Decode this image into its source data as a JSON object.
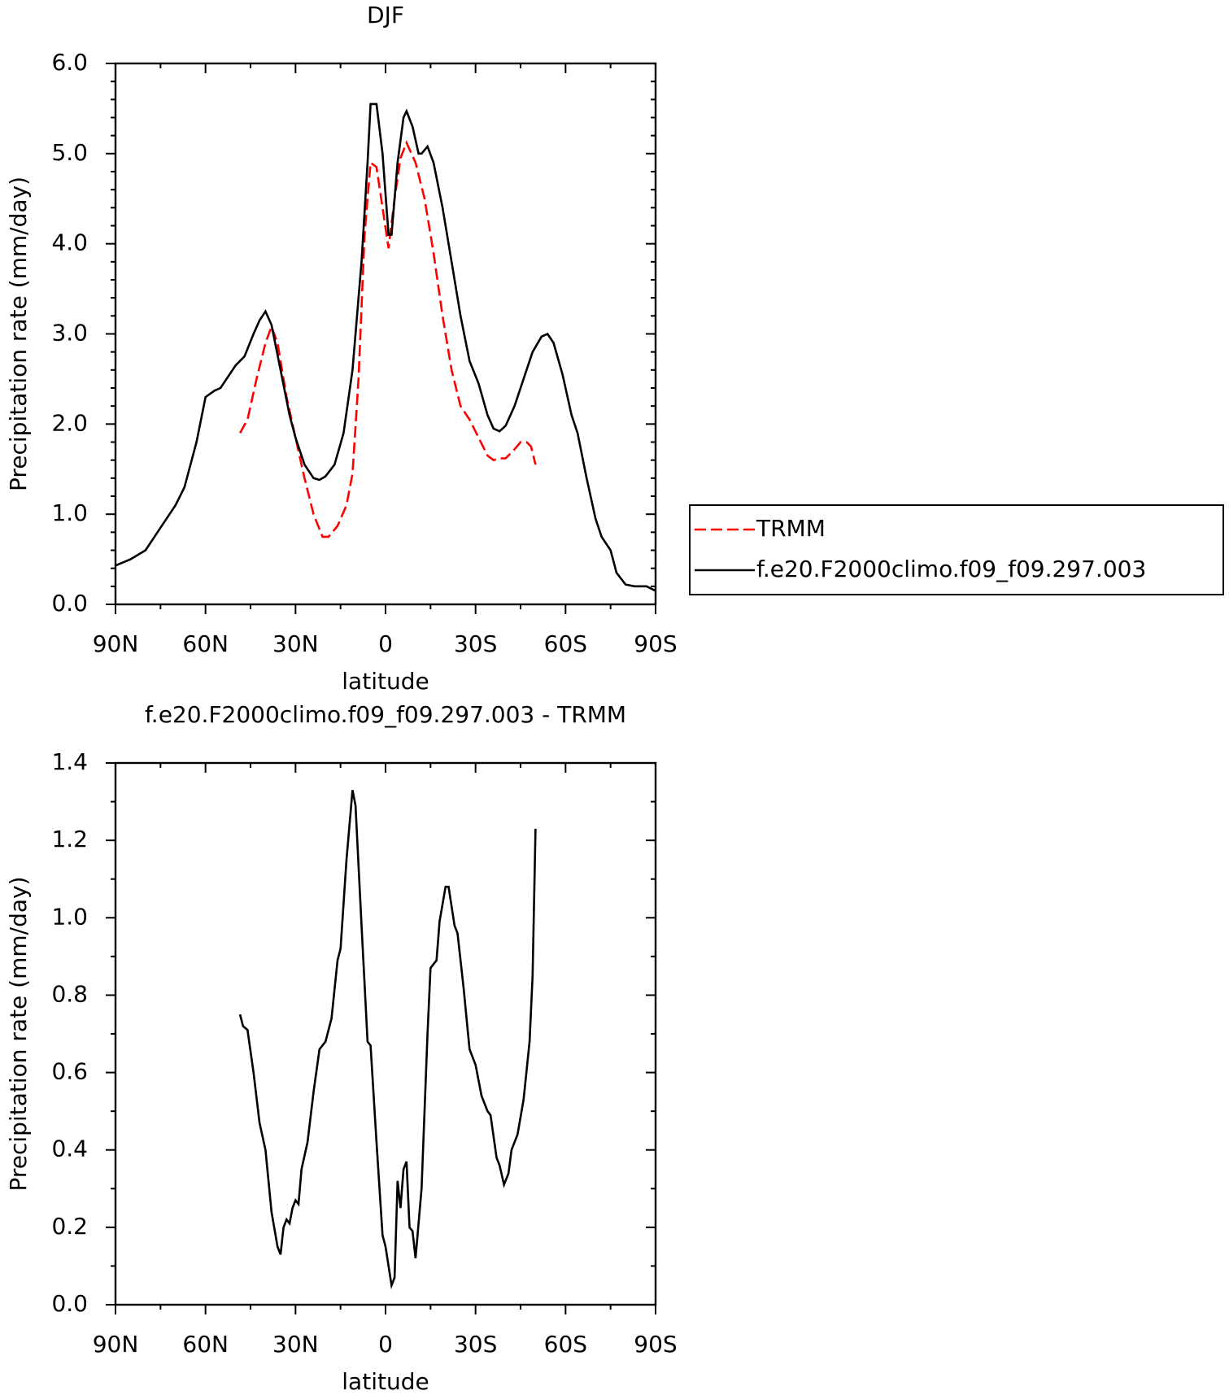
{
  "chart_data": [
    {
      "type": "line",
      "title": "DJF",
      "xlabel": "latitude",
      "ylabel": "Precipitation rate (mm/day)",
      "xlim": [
        90,
        -90
      ],
      "xticks": [
        {
          "value": 90,
          "label": "90N"
        },
        {
          "value": 60,
          "label": "60N"
        },
        {
          "value": 30,
          "label": "30N"
        },
        0,
        {
          "value": -30,
          "label": "30S"
        },
        {
          "value": -60,
          "label": "60S"
        },
        {
          "value": -90,
          "label": "90S"
        }
      ],
      "xminorticks": [
        75,
        45,
        15,
        -15,
        -45,
        -75
      ],
      "ylim": [
        0,
        6
      ],
      "yticks": [
        {
          "value": 0,
          "label": "0.0"
        },
        {
          "value": 1,
          "label": "1.0"
        },
        {
          "value": 2,
          "label": "2.0"
        },
        {
          "value": 3,
          "label": "3.0"
        },
        {
          "value": 4,
          "label": "4.0"
        },
        {
          "value": 5,
          "label": "5.0"
        },
        {
          "value": 6,
          "label": "6.0"
        }
      ],
      "yminorticks": [
        0.2,
        0.4,
        0.6,
        0.8,
        1.2,
        1.4,
        1.6,
        1.8,
        2.2,
        2.4,
        2.6,
        2.8,
        3.2,
        3.4,
        3.6,
        3.8,
        4.2,
        4.4,
        4.6,
        4.8,
        5.2,
        5.4,
        5.6,
        5.8
      ],
      "legend": "right",
      "series": [
        {
          "name": "TRMM",
          "color": "#ff0000",
          "linestyle": "dashed",
          "x": [
            48.5,
            46,
            43,
            40,
            38,
            36,
            33,
            30,
            27,
            24,
            21,
            19,
            16,
            13,
            11,
            9,
            7,
            5,
            3,
            1,
            -1,
            -3,
            -5,
            -7,
            -10,
            -13,
            -16,
            -19,
            -22,
            -25,
            -28,
            -31,
            -34,
            -36,
            -38,
            -40,
            -43,
            -45,
            -47,
            -48.5,
            -50
          ],
          "values": [
            1.9,
            2.05,
            2.5,
            2.9,
            3.08,
            2.9,
            2.3,
            1.85,
            1.4,
            1.0,
            0.75,
            0.75,
            0.87,
            1.1,
            1.45,
            2.5,
            4.1,
            4.9,
            4.85,
            4.4,
            3.95,
            4.5,
            4.95,
            5.12,
            4.9,
            4.5,
            3.9,
            3.2,
            2.6,
            2.2,
            2.05,
            1.85,
            1.65,
            1.6,
            1.62,
            1.62,
            1.72,
            1.8,
            1.8,
            1.75,
            1.55
          ]
        },
        {
          "name": "f.e20.F2000climo.f09_f09.297.003",
          "color": "#000000",
          "linestyle": "solid",
          "x": [
            90,
            85,
            80,
            75,
            70,
            67,
            63,
            60,
            57,
            55,
            52,
            50,
            47,
            44,
            42,
            40,
            38,
            35,
            32,
            30,
            27,
            24,
            22,
            20,
            17,
            14,
            11,
            8,
            6,
            5,
            3,
            1,
            -1,
            -2,
            -4,
            -6,
            -7,
            -9,
            -11,
            -12,
            -14,
            -16,
            -19,
            -22,
            -25,
            -28,
            -31,
            -34,
            -36,
            -38,
            -40,
            -43,
            -46,
            -49,
            -52,
            -54,
            -56,
            -59,
            -62,
            -64,
            -67,
            -70,
            -72,
            -75,
            -77,
            -80,
            -83,
            -85,
            -87,
            -90
          ],
          "values": [
            0.43,
            0.5,
            0.6,
            0.85,
            1.1,
            1.3,
            1.8,
            2.3,
            2.37,
            2.4,
            2.55,
            2.65,
            2.75,
            3.0,
            3.15,
            3.25,
            3.1,
            2.6,
            2.1,
            1.85,
            1.55,
            1.4,
            1.38,
            1.42,
            1.55,
            1.9,
            2.6,
            3.8,
            4.9,
            5.55,
            5.55,
            5.0,
            4.1,
            4.1,
            4.9,
            5.4,
            5.47,
            5.3,
            5.0,
            5.0,
            5.08,
            4.9,
            4.4,
            3.8,
            3.2,
            2.7,
            2.45,
            2.1,
            1.95,
            1.92,
            1.98,
            2.2,
            2.5,
            2.8,
            2.97,
            3.0,
            2.9,
            2.55,
            2.1,
            1.9,
            1.4,
            0.95,
            0.75,
            0.6,
            0.35,
            0.22,
            0.2,
            0.2,
            0.2,
            0.15
          ]
        }
      ]
    },
    {
      "type": "line",
      "title": "f.e20.F2000climo.f09_f09.297.003 - TRMM",
      "xlabel": "latitude",
      "ylabel": "Precipitation rate (mm/day)",
      "xlim": [
        90,
        -90
      ],
      "xticks": [
        {
          "value": 90,
          "label": "90N"
        },
        {
          "value": 60,
          "label": "60N"
        },
        {
          "value": 30,
          "label": "30N"
        },
        0,
        {
          "value": -30,
          "label": "30S"
        },
        {
          "value": -60,
          "label": "60S"
        },
        {
          "value": -90,
          "label": "90S"
        }
      ],
      "xminorticks": [
        75,
        45,
        15,
        -15,
        -45,
        -75
      ],
      "ylim": [
        0,
        1.4
      ],
      "yticks": [
        {
          "value": 0,
          "label": "0.0"
        },
        {
          "value": 0.2,
          "label": "0.2"
        },
        {
          "value": 0.4,
          "label": "0.4"
        },
        {
          "value": 0.6,
          "label": "0.6"
        },
        {
          "value": 0.8,
          "label": "0.8"
        },
        {
          "value": 1,
          "label": "1.0"
        },
        {
          "value": 1.2,
          "label": "1.2"
        },
        {
          "value": 1.4,
          "label": "1.4"
        }
      ],
      "yminorticks": [
        0.1,
        0.3,
        0.5,
        0.7,
        0.9,
        1.1,
        1.3
      ],
      "series": [
        {
          "color": "#000000",
          "linestyle": "solid",
          "x": [
            48.5,
            47.5,
            46,
            44,
            42,
            40,
            38,
            36,
            35,
            34,
            33,
            32,
            31,
            30,
            29,
            28,
            26,
            24,
            22,
            20,
            18,
            16,
            15,
            13,
            11,
            10,
            8,
            6,
            5,
            3,
            1,
            0,
            -2,
            -3,
            -4,
            -5,
            -6,
            -7,
            -8,
            -9,
            -10,
            -12,
            -14,
            -15,
            -17,
            -18,
            -20,
            -21,
            -23,
            -24,
            -26,
            -28,
            -30,
            -32,
            -34,
            -35,
            -37,
            -38,
            -39.5,
            -41,
            -42,
            -44,
            -46,
            -48,
            -49,
            -50
          ],
          "values": [
            0.75,
            0.72,
            0.71,
            0.6,
            0.47,
            0.4,
            0.24,
            0.15,
            0.13,
            0.2,
            0.22,
            0.21,
            0.25,
            0.27,
            0.26,
            0.35,
            0.42,
            0.55,
            0.66,
            0.68,
            0.74,
            0.89,
            0.92,
            1.15,
            1.33,
            1.29,
            0.98,
            0.68,
            0.67,
            0.42,
            0.18,
            0.15,
            0.05,
            0.07,
            0.32,
            0.25,
            0.35,
            0.37,
            0.2,
            0.19,
            0.12,
            0.3,
            0.7,
            0.87,
            0.89,
            0.99,
            1.08,
            1.08,
            0.98,
            0.96,
            0.82,
            0.66,
            0.62,
            0.54,
            0.5,
            0.49,
            0.38,
            0.36,
            0.31,
            0.34,
            0.4,
            0.44,
            0.53,
            0.68,
            0.85,
            1.23
          ]
        }
      ]
    }
  ]
}
